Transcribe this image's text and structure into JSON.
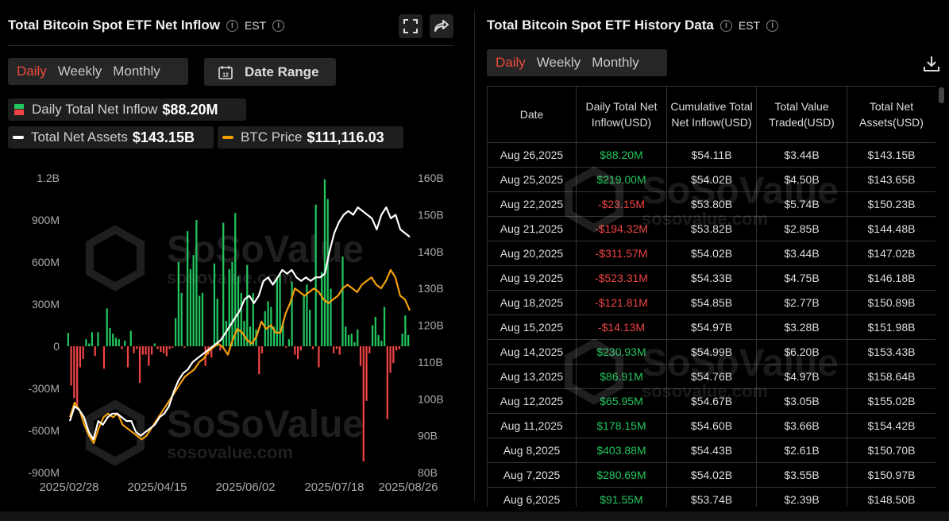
{
  "left": {
    "title": "Total Bitcoin Spot ETF Net Inflow",
    "timezone": "EST",
    "tabs": [
      {
        "label": "Daily",
        "active": true
      },
      {
        "label": "Weekly",
        "active": false
      },
      {
        "label": "Monthly",
        "active": false
      }
    ],
    "date_range_label": "Date Range",
    "legend": {
      "daily_label": "Daily Total Net Inflow",
      "daily_value": "$88.20M",
      "assets_label": "Total Net Assets",
      "assets_value": "$143.15B",
      "btc_label": "BTC Price",
      "btc_value": "$111,116.03"
    },
    "icons": {
      "fullscreen": "fullscreen-icon",
      "share": "share-icon",
      "calendar": "calendar-icon",
      "calendar_day": "12"
    },
    "watermark": {
      "brand": "SoSoValue",
      "url": "sosovalue.com"
    }
  },
  "chart_data": {
    "type": "bar",
    "x_ticks": [
      "2025/02/28",
      "2025/04/15",
      "2025/06/02",
      "2025/07/18",
      "2025/08/26"
    ],
    "y_left_ticks": [
      "1.2B",
      "900M",
      "600M",
      "300M",
      "0",
      "-300M",
      "-600M",
      "-900M"
    ],
    "y_right_ticks": [
      "160B",
      "150B",
      "140B",
      "130B",
      "120B",
      "110B",
      "100B",
      "90B",
      "80B"
    ],
    "ylim_left_millions": [
      -900,
      1200
    ],
    "ylim_right_billions": [
      80,
      160
    ],
    "grid": false,
    "legend_placement": "top-left",
    "colors": {
      "inflow_pos": "#22c55e",
      "inflow_neg": "#ef4444",
      "assets": "#ffffff",
      "btc": "#f59e0b"
    },
    "series": [
      {
        "name": "Daily Total Net Inflow",
        "axis": "left",
        "unit": "M USD",
        "values": [
          95,
          -280,
          -370,
          -420,
          -150,
          -90,
          50,
          20,
          100,
          -70,
          100,
          0,
          -160,
          270,
          130,
          90,
          60,
          50,
          -20,
          40,
          -150,
          110,
          -50,
          -20,
          -260,
          -60,
          -60,
          -140,
          -60,
          20,
          -20,
          -40,
          -50,
          -70,
          -20,
          -10,
          200,
          600,
          380,
          -10,
          820,
          550,
          650,
          900,
          360,
          380,
          -140,
          -60,
          -80,
          590,
          340,
          -30,
          880,
          180,
          550,
          600,
          950,
          500,
          380,
          180,
          580,
          140,
          380,
          120,
          -200,
          -50,
          250,
          320,
          280,
          140,
          480,
          510,
          180,
          -10,
          50,
          460,
          -60,
          -90,
          -30,
          370,
          440,
          260,
          -20,
          1010,
          -150,
          530,
          1190,
          1050,
          410,
          -50,
          -20,
          -60,
          640,
          140,
          80,
          90,
          30,
          120,
          -140,
          -820,
          -390,
          -50,
          150,
          210,
          80,
          40,
          280,
          -520,
          -190,
          -120,
          -30,
          -20,
          90,
          220,
          80
        ]
      },
      {
        "name": "Total Net Assets",
        "axis": "right",
        "unit": "B USD",
        "values": [
          94,
          98,
          97,
          95,
          91,
          89,
          94,
          93,
          95,
          96,
          96,
          95,
          94,
          94,
          91,
          90,
          91,
          92,
          93,
          95,
          96,
          98,
          102,
          105,
          107,
          108,
          110,
          111,
          112,
          113,
          114,
          115,
          116,
          118,
          120,
          122,
          124,
          127,
          128,
          126,
          128,
          132,
          133,
          131,
          133,
          135,
          134,
          135,
          133,
          132,
          133,
          132,
          133,
          133,
          134,
          140,
          145,
          148,
          150,
          151,
          150,
          152,
          151,
          150,
          149,
          146,
          150,
          152,
          149,
          150,
          146,
          145,
          144
        ]
      },
      {
        "name": "BTC Price",
        "axis": "right",
        "unit": "B-axis equiv",
        "values": [
          95,
          99,
          97,
          93,
          90,
          88,
          92,
          95,
          96,
          95,
          96,
          93,
          92,
          91,
          90,
          89,
          90,
          92,
          94,
          96,
          98,
          100,
          102,
          104,
          106,
          107,
          108,
          110,
          111,
          113,
          114,
          115,
          114,
          112,
          116,
          119,
          118,
          116,
          115,
          117,
          121,
          119,
          120,
          118,
          118,
          123,
          126,
          130,
          129,
          128,
          129,
          130,
          129,
          127,
          126,
          127,
          128,
          130,
          131,
          130,
          129,
          131,
          132,
          133,
          131,
          130,
          132,
          135,
          133,
          128,
          127,
          124
        ]
      }
    ]
  },
  "right": {
    "title": "Total Bitcoin Spot ETF History Data",
    "timezone": "EST",
    "tabs": [
      {
        "label": "Daily",
        "active": true
      },
      {
        "label": "Weekly",
        "active": false
      },
      {
        "label": "Monthly",
        "active": false
      }
    ],
    "headers": [
      "Date",
      "Daily Total Net Inflow(USD)",
      "Cumulative Total Net Inflow(USD)",
      "Total Value Traded(USD)",
      "Total Net Assets(USD)"
    ],
    "rows": [
      {
        "date": "Aug 26,2025",
        "inflow": "$88.20M",
        "cumulative": "$54.11B",
        "traded": "$3.44B",
        "assets": "$143.15B"
      },
      {
        "date": "Aug 25,2025",
        "inflow": "$219.00M",
        "cumulative": "$54.02B",
        "traded": "$4.50B",
        "assets": "$143.65B"
      },
      {
        "date": "Aug 22,2025",
        "inflow": "-$23.15M",
        "cumulative": "$53.80B",
        "traded": "$5.74B",
        "assets": "$150.23B"
      },
      {
        "date": "Aug 21,2025",
        "inflow": "-$194.32M",
        "cumulative": "$53.82B",
        "traded": "$2.85B",
        "assets": "$144.48B"
      },
      {
        "date": "Aug 20,2025",
        "inflow": "-$311.57M",
        "cumulative": "$54.02B",
        "traded": "$3.44B",
        "assets": "$147.02B"
      },
      {
        "date": "Aug 19,2025",
        "inflow": "-$523.31M",
        "cumulative": "$54.33B",
        "traded": "$4.75B",
        "assets": "$146.18B"
      },
      {
        "date": "Aug 18,2025",
        "inflow": "-$121.81M",
        "cumulative": "$54.85B",
        "traded": "$2.77B",
        "assets": "$150.89B"
      },
      {
        "date": "Aug 15,2025",
        "inflow": "-$14.13M",
        "cumulative": "$54.97B",
        "traded": "$3.28B",
        "assets": "$151.98B"
      },
      {
        "date": "Aug 14,2025",
        "inflow": "$230.93M",
        "cumulative": "$54.99B",
        "traded": "$6.20B",
        "assets": "$153.43B"
      },
      {
        "date": "Aug 13,2025",
        "inflow": "$86.91M",
        "cumulative": "$54.76B",
        "traded": "$4.97B",
        "assets": "$158.64B"
      },
      {
        "date": "Aug 12,2025",
        "inflow": "$65.95M",
        "cumulative": "$54.67B",
        "traded": "$3.05B",
        "assets": "$155.02B"
      },
      {
        "date": "Aug 11,2025",
        "inflow": "$178.15M",
        "cumulative": "$54.60B",
        "traded": "$3.66B",
        "assets": "$154.42B"
      },
      {
        "date": "Aug 8,2025",
        "inflow": "$403.88M",
        "cumulative": "$54.43B",
        "traded": "$2.61B",
        "assets": "$150.70B"
      },
      {
        "date": "Aug 7,2025",
        "inflow": "$280.69M",
        "cumulative": "$54.02B",
        "traded": "$3.55B",
        "assets": "$150.97B"
      },
      {
        "date": "Aug 6,2025",
        "inflow": "$91.55M",
        "cumulative": "$53.74B",
        "traded": "$2.39B",
        "assets": "$148.50B"
      }
    ],
    "icons": {
      "download": "download-icon"
    }
  }
}
